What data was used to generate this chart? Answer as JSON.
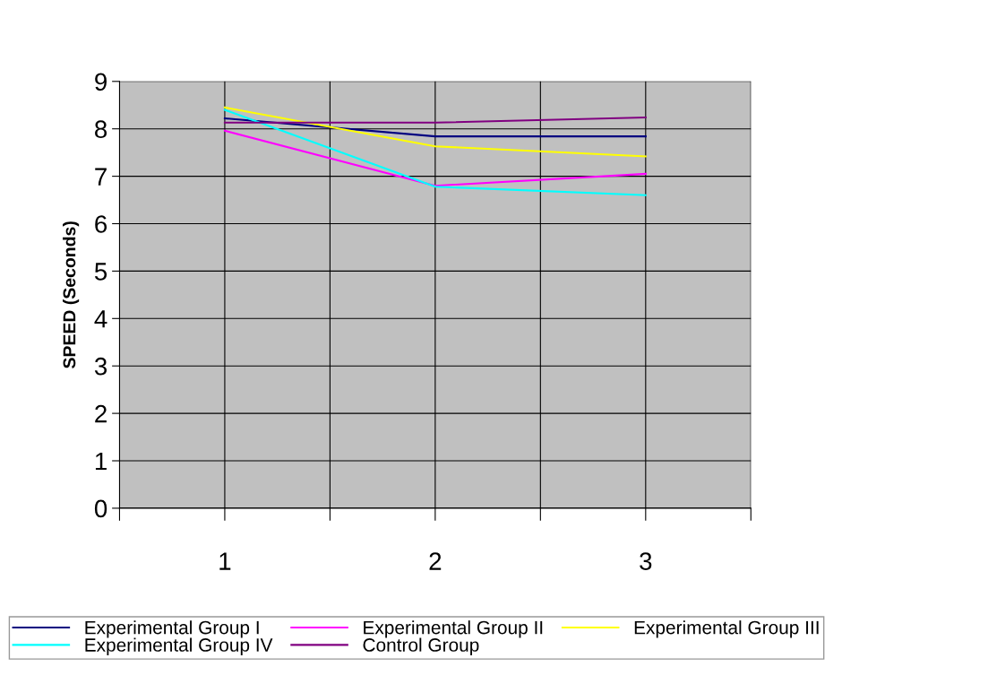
{
  "chart_data": {
    "type": "line",
    "ylabel": "SPEED (Seconds)",
    "x": [
      1,
      2,
      3
    ],
    "xlim": [
      0.5,
      3.5
    ],
    "xticks": [
      {
        "value": 0.5,
        "label": null
      },
      1,
      {
        "value": 1.5,
        "label": null
      },
      2,
      {
        "value": 2.5,
        "label": null
      },
      3,
      {
        "value": 3.5,
        "label": null
      }
    ],
    "ylim": [
      0,
      9
    ],
    "yticks": [
      0,
      1,
      2,
      3,
      4,
      5,
      6,
      7,
      8,
      9
    ],
    "grid": true,
    "legend": "bottom",
    "marker": "none",
    "line_style": "solid",
    "series": [
      {
        "name": "Experimental Group I",
        "color": "#000080",
        "values": [
          8.22,
          7.84,
          7.84
        ]
      },
      {
        "name": "Experimental Group II",
        "color": "#ff00ff",
        "values": [
          7.96,
          6.8,
          7.05
        ]
      },
      {
        "name": "Experimental Group III",
        "color": "#ffff00",
        "values": [
          8.45,
          7.63,
          7.42
        ]
      },
      {
        "name": "Experimental Group IV",
        "color": "#00ffff",
        "values": [
          8.4,
          6.78,
          6.6
        ]
      },
      {
        "name": "Control Group",
        "color": "#800080",
        "values": [
          8.13,
          8.13,
          8.24
        ]
      }
    ]
  }
}
